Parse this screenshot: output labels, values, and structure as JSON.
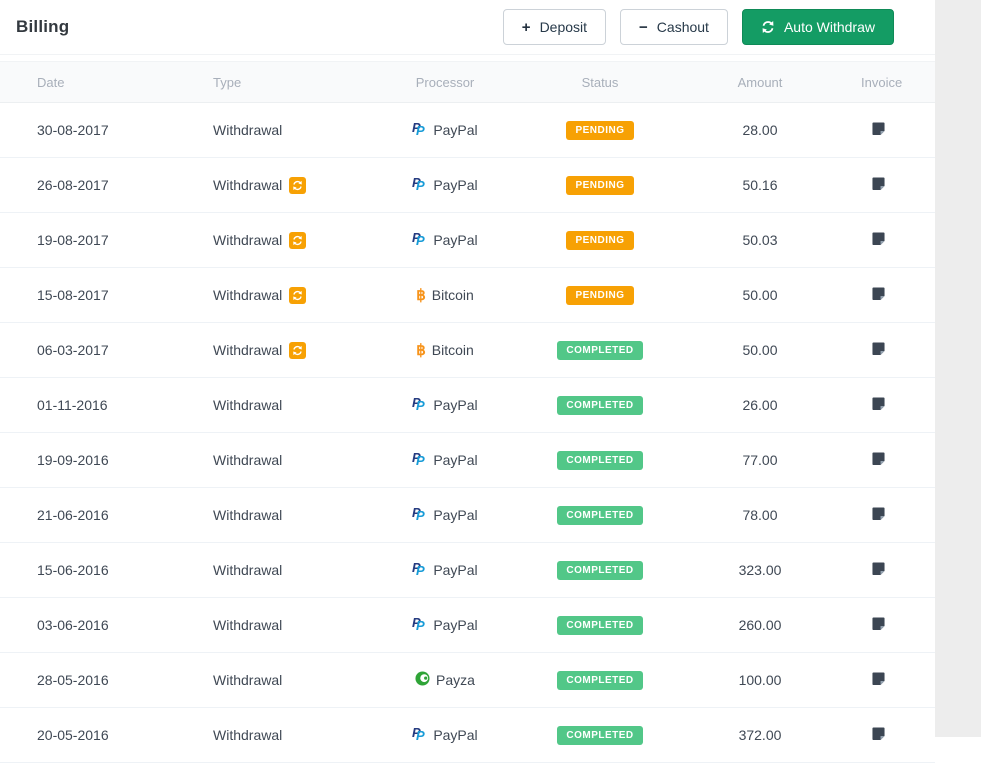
{
  "page": {
    "title": "Billing"
  },
  "toolbar": {
    "deposit": "Deposit",
    "cashout": "Cashout",
    "auto_withdraw": "Auto Withdraw"
  },
  "table": {
    "columns": [
      "Date",
      "Type",
      "Processor",
      "Status",
      "Amount",
      "Invoice"
    ],
    "rows": [
      {
        "date": "30-08-2017",
        "type": "Withdrawal",
        "auto": false,
        "processor": "PayPal",
        "status": "PENDING",
        "amount": "28.00"
      },
      {
        "date": "26-08-2017",
        "type": "Withdrawal",
        "auto": true,
        "processor": "PayPal",
        "status": "PENDING",
        "amount": "50.16"
      },
      {
        "date": "19-08-2017",
        "type": "Withdrawal",
        "auto": true,
        "processor": "PayPal",
        "status": "PENDING",
        "amount": "50.03"
      },
      {
        "date": "15-08-2017",
        "type": "Withdrawal",
        "auto": true,
        "processor": "Bitcoin",
        "status": "PENDING",
        "amount": "50.00"
      },
      {
        "date": "06-03-2017",
        "type": "Withdrawal",
        "auto": true,
        "processor": "Bitcoin",
        "status": "COMPLETED",
        "amount": "50.00"
      },
      {
        "date": "01-11-2016",
        "type": "Withdrawal",
        "auto": false,
        "processor": "PayPal",
        "status": "COMPLETED",
        "amount": "26.00"
      },
      {
        "date": "19-09-2016",
        "type": "Withdrawal",
        "auto": false,
        "processor": "PayPal",
        "status": "COMPLETED",
        "amount": "77.00"
      },
      {
        "date": "21-06-2016",
        "type": "Withdrawal",
        "auto": false,
        "processor": "PayPal",
        "status": "COMPLETED",
        "amount": "78.00"
      },
      {
        "date": "15-06-2016",
        "type": "Withdrawal",
        "auto": false,
        "processor": "PayPal",
        "status": "COMPLETED",
        "amount": "323.00"
      },
      {
        "date": "03-06-2016",
        "type": "Withdrawal",
        "auto": false,
        "processor": "PayPal",
        "status": "COMPLETED",
        "amount": "260.00"
      },
      {
        "date": "28-05-2016",
        "type": "Withdrawal",
        "auto": false,
        "processor": "Payza",
        "status": "COMPLETED",
        "amount": "100.00"
      },
      {
        "date": "20-05-2016",
        "type": "Withdrawal",
        "auto": false,
        "processor": "PayPal",
        "status": "COMPLETED",
        "amount": "372.00"
      }
    ]
  },
  "icons": {
    "deposit": "plus-icon",
    "cashout": "minus-icon",
    "auto_withdraw": "refresh-icon",
    "auto_renew": "refresh-badge-icon",
    "invoice": "invoice-note-icon",
    "processors": {
      "PayPal": "paypal-icon",
      "Bitcoin": "bitcoin-icon",
      "Payza": "payza-icon"
    }
  },
  "colors": {
    "pending_badge": "#F7A104",
    "completed_badge": "#52C788",
    "auto_withdraw_button": "#149C64",
    "paypal_dark": "#253B80",
    "paypal_light": "#179BD7",
    "bitcoin": "#F7931A",
    "payza": "#2FA437",
    "invoice_icon": "#3C4653",
    "refresh_badge": "#F7A104",
    "right_gutter": "#EDEDED"
  }
}
